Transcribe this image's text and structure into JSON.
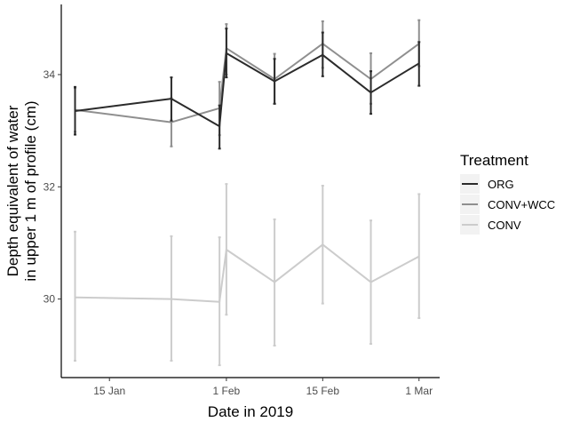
{
  "chart_data": {
    "type": "line",
    "xlabel": "Date in 2019",
    "ylabel": [
      "Depth equivalent of water",
      "in upper 1 m of profile (cm)"
    ],
    "x_dates": [
      "2019-01-10",
      "2019-01-24",
      "2019-01-31",
      "2019-02-01",
      "2019-02-08",
      "2019-02-15",
      "2019-02-22",
      "2019-03-01"
    ],
    "x_range": [
      "2019-01-08",
      "2019-03-04"
    ],
    "x_ticks": [
      {
        "date": "2019-01-15",
        "label": "15 Jan"
      },
      {
        "date": "2019-02-01",
        "label": "1 Feb"
      },
      {
        "date": "2019-02-15",
        "label": "15 Feb"
      },
      {
        "date": "2019-03-01",
        "label": "1 Mar"
      }
    ],
    "ylim": [
      28.6,
      35.25
    ],
    "y_ticks": [
      30,
      32,
      34
    ],
    "grid": false,
    "legend": {
      "title": "Treatment",
      "position": "right",
      "entries": [
        "ORG",
        "CONV+WCC",
        "CONV"
      ]
    },
    "series": [
      {
        "name": "CONV",
        "color": "#cccccc",
        "values": [
          30.03,
          30.0,
          29.95,
          30.88,
          30.3,
          30.97,
          30.3,
          30.76
        ],
        "lower": [
          28.9,
          28.9,
          28.82,
          29.72,
          29.17,
          29.92,
          29.2,
          29.66
        ],
        "upper": [
          31.2,
          31.12,
          31.1,
          32.05,
          31.42,
          32.02,
          31.4,
          31.87
        ]
      },
      {
        "name": "CONV+WCC",
        "color": "#8f8f8f",
        "values": [
          33.37,
          33.15,
          33.4,
          34.47,
          33.92,
          34.55,
          33.92,
          34.55
        ],
        "lower": [
          32.98,
          32.72,
          32.92,
          34.0,
          33.48,
          34.12,
          33.48,
          34.15
        ],
        "upper": [
          33.76,
          33.58,
          33.87,
          34.9,
          34.37,
          34.95,
          34.38,
          34.97
        ]
      },
      {
        "name": "ORG",
        "color": "#2b2b2b",
        "values": [
          33.35,
          33.57,
          33.08,
          34.38,
          33.88,
          34.35,
          33.68,
          34.2
        ],
        "lower": [
          32.93,
          33.18,
          32.68,
          33.95,
          33.48,
          33.97,
          33.3,
          33.8
        ],
        "upper": [
          33.78,
          33.95,
          33.45,
          34.82,
          34.28,
          34.75,
          34.06,
          34.58
        ]
      }
    ]
  }
}
